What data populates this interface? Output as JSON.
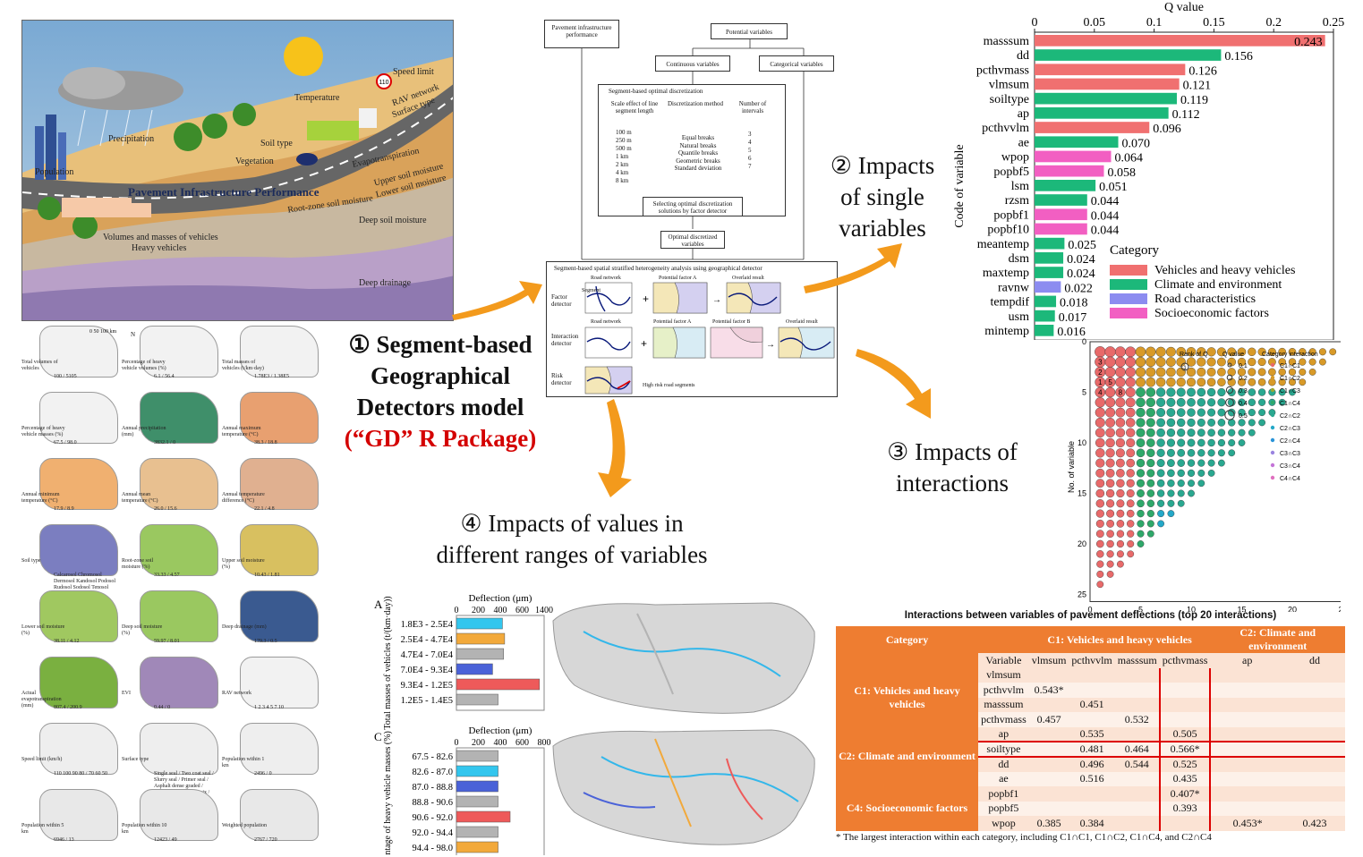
{
  "illustration": {
    "title": "Pavement Infrastructure Performance",
    "labels": [
      "Precipitation",
      "Temperature",
      "Speed limit",
      "RAV network",
      "Surface type",
      "Soil type",
      "Vegetation",
      "Population",
      "Evapotranspiration",
      "Upper soil moisture",
      "Lower soil moisture",
      "Root-zone soil moisture",
      "Deep soil moisture",
      "Deep drainage",
      "Volumes and masses of vehicles",
      "Heavy vehicles"
    ],
    "speed_sign": "110"
  },
  "maps": [
    {
      "caption": "Total volumes of vehicles",
      "legend": "100 / 5105",
      "scale": "0 50 100 km",
      "north": "N"
    },
    {
      "caption": "Percentage of heavy vehicle volumes (%)",
      "legend": "6.1 / 56.4"
    },
    {
      "caption": "Total masses of vehicles (t/km·day)",
      "legend": "1.78E3 / 1.38E5"
    },
    {
      "caption": "Percentage of heavy vehicle masses (%)",
      "legend": "67.5 / 98.0"
    },
    {
      "caption": "Annual precipitation (mm)",
      "legend": "3832.1 / 0"
    },
    {
      "caption": "Annual maximum temperature (°C)",
      "legend": "38.3 / 18.8"
    },
    {
      "caption": "Annual minimum temperature (°C)",
      "legend": "17.9 / 8.9"
    },
    {
      "caption": "Annual mean temperature (°C)",
      "legend": "26.0 / 15.6"
    },
    {
      "caption": "Annual temperature difference (°C)",
      "legend": "22.1 / 4.8"
    },
    {
      "caption": "Soil type",
      "legend": "Calcarosol Chromosol Dermosol Kandosol Podosol Rudosol Sodosol Tenosol"
    },
    {
      "caption": "Root-zone soil moisture (%)",
      "legend": "33.33 / 4.57"
    },
    {
      "caption": "Upper soil moisture (%)",
      "legend": "10.43 / 1.81"
    },
    {
      "caption": "Lower soil moisture (%)",
      "legend": "38.11 / 4.12"
    },
    {
      "caption": "Deep soil moisture (%)",
      "legend": "59.97 / 8.01"
    },
    {
      "caption": "Deep drainage (mm)",
      "legend": "179.3 / 0.5"
    },
    {
      "caption": "Actual evapotranspiration (mm)",
      "legend": "807.4 / 200.9"
    },
    {
      "caption": "EVI",
      "legend": "0.44 / 0"
    },
    {
      "caption": "RAV network",
      "legend": "1 2 3 4 5 7 10"
    },
    {
      "caption": "Speed limit (km/h)",
      "legend": "110 100 90 80 / 70 60 50"
    },
    {
      "caption": "Surface type",
      "legend": "Single seal / Two coat seal / Slurry seal / Primer seal / Asphalt dense graded / Asphalt intersection mix / Rubberised seal / Asphalt open graded"
    },
    {
      "caption": "Population within 1 km",
      "legend": "2496 / 0"
    },
    {
      "caption": "Population within 5 km",
      "legend": "6946 / 13"
    },
    {
      "caption": "Population within 10 km",
      "legend": "12423 / 49"
    },
    {
      "caption": "Weighted population",
      "legend": "2767 / 720"
    }
  ],
  "flow": {
    "pavement_box": "Pavement infrastructure performance",
    "potential_box": "Potential variables",
    "continuous_box": "Continuous variables",
    "categorical_box": "Categorical variables",
    "discretization_title": "Segment-based optimal discretization",
    "col1_title": "Scale effect of line segment length",
    "col2_title": "Discretization method",
    "col3_title": "Number of intervals",
    "lengths": [
      "100 m",
      "250 m",
      "500 m",
      "1 km",
      "2 km",
      "4 km",
      "8 km"
    ],
    "methods": [
      "Equal breaks",
      "Natural breaks",
      "Quantile breaks",
      "Geometric breaks",
      "Standard deviation"
    ],
    "intervals": [
      "3",
      "4",
      "5",
      "6",
      "7"
    ],
    "select_box": "Selecting optimal discretization solutions by factor detector",
    "optimal_box": "Optimal discretized variables",
    "gd_title": "Segment-based spatial stratified heterogeneity analysis using geographical detector",
    "rows": [
      {
        "detector": "Factor detector",
        "a": "Road network",
        "b": "Potential factor A",
        "c": "Overlaid result"
      },
      {
        "detector": "Interaction detector",
        "a": "Road network",
        "b": "Potential factor A",
        "c": "Potential factor B",
        "d": "Overlaid result"
      },
      {
        "detector": "Risk detector",
        "a": "High risk road segments"
      }
    ],
    "segment_label": "Segment"
  },
  "steps": {
    "s1_num": "①",
    "s1_a": "Segment-based",
    "s1_b": "Geographical",
    "s1_c": "Detectors model",
    "s1_pkg": "(“GD” R Package)",
    "s2_num": "②",
    "s2_a": "Impacts",
    "s2_b": "of single",
    "s2_c": "variables",
    "s3_num": "③",
    "s3_a": "Impacts of",
    "s3_b": "interactions",
    "s4_num": "④",
    "s4_a": "Impacts of values in",
    "s4_b": "different ranges of variables"
  },
  "chart_data": [
    {
      "type": "bar",
      "orientation": "horizontal",
      "title": "Q value",
      "ylabel": "Code of variable",
      "xlim": [
        0,
        0.25
      ],
      "xticks": [
        0,
        0.05,
        0.1,
        0.15,
        0.2,
        0.25
      ],
      "xtick_labels": [
        "0",
        "0.05",
        "0.1",
        "0.15",
        "0.2",
        "0.25"
      ],
      "categories": [
        "masssum",
        "dd",
        "pcthvmass",
        "vlmsum",
        "soiltype",
        "ap",
        "pcthvvlm",
        "ae",
        "wpop",
        "popbf5",
        "lsm",
        "rzsm",
        "popbf1",
        "popbf10",
        "meantemp",
        "dsm",
        "maxtemp",
        "ravnw",
        "tempdif",
        "usm",
        "mintemp"
      ],
      "values": [
        0.243,
        0.156,
        0.126,
        0.121,
        0.119,
        0.112,
        0.096,
        0.07,
        0.064,
        0.058,
        0.051,
        0.044,
        0.044,
        0.044,
        0.025,
        0.024,
        0.024,
        0.022,
        0.018,
        0.017,
        0.016
      ],
      "value_labels": [
        "0.243",
        "0.156",
        "0.126",
        "0.121",
        "0.119",
        "0.112",
        "0.096",
        "0.070",
        "0.064",
        "0.058",
        "0.051",
        "0.044",
        "0.044",
        "0.044",
        "0.025",
        "0.024",
        "0.024",
        "0.022",
        "0.018",
        "0.017",
        "0.016"
      ],
      "category_of": [
        0,
        1,
        0,
        0,
        1,
        1,
        0,
        1,
        3,
        3,
        1,
        1,
        3,
        3,
        1,
        1,
        1,
        2,
        1,
        1,
        1
      ],
      "legend_title": "Category",
      "legend": [
        "Vehicles and heavy vehicles",
        "Climate and environment",
        "Road characteristics",
        "Socioeconomic factors"
      ],
      "colors": [
        "#f07070",
        "#1cb87a",
        "#8c8cf0",
        "#f25fc2"
      ]
    },
    {
      "type": "scatter",
      "xlabel": "No. of variable",
      "ylabel": "No. of variable",
      "xticks": [
        0,
        5,
        10,
        15,
        20,
        25
      ],
      "yticks": [
        0,
        5,
        10,
        15,
        20,
        25
      ],
      "legend_rank_title": "Rank of Q",
      "legend_rank_symbol": "1",
      "legend_q_title": "Q value",
      "legend_q": [
        "0.1",
        "0.2",
        "0.3",
        "0.4",
        "0.5"
      ],
      "legend_cat_title": "Category interaction",
      "legend_cat": [
        "C1∩C1",
        "C1∩C2",
        "C1∩C3",
        "C1∩C4",
        "C2∩C2",
        "C2∩C3",
        "C2∩C4",
        "C3∩C3",
        "C3∩C4",
        "C4∩C4"
      ],
      "cat_colors": [
        "#e86a6a",
        "#d89a28",
        "#9aa830",
        "#2fa86a",
        "#2aa890",
        "#24a8c8",
        "#2a94d8",
        "#9a84e0",
        "#c474d8",
        "#e070c0"
      ],
      "rank_labels": [
        "3",
        "2",
        "1",
        "5",
        "4",
        "8"
      ]
    },
    {
      "type": "bar",
      "orientation": "horizontal",
      "panel": "A",
      "title": "Deflection (μm)",
      "ylabel": "Total masses of vehicles (t/(km·day))",
      "xlim": [
        0,
        1400
      ],
      "xticks": [
        0,
        200,
        400,
        600,
        1400
      ],
      "xtick_labels": [
        "0",
        "200",
        "400",
        "600",
        "1400"
      ],
      "categories": [
        "1.8E3 - 2.5E4",
        "2.5E4 - 4.7E4",
        "4.7E4 - 7.0E4",
        "7.0E4 - 9.3E4",
        "9.3E4 - 1.2E5",
        "1.2E5 - 1.4E5"
      ],
      "values": [
        420,
        440,
        430,
        330,
        1230,
        380
      ],
      "colors": [
        "#33c6ee",
        "#f2a93b",
        "#b3b3b3",
        "#4a62d8",
        "#ee5a5a",
        "#b3b3b3"
      ]
    },
    {
      "type": "bar",
      "orientation": "horizontal",
      "panel": "C",
      "title": "Deflection (μm)",
      "ylabel": "Percentage of heavy vehicle masses (%)",
      "xlim": [
        0,
        800
      ],
      "xticks": [
        0,
        200,
        400,
        600,
        800
      ],
      "xtick_labels": [
        "0",
        "200",
        "400",
        "600",
        "800"
      ],
      "categories": [
        "67.5 - 82.6",
        "82.6 - 87.0",
        "87.0 - 88.8",
        "88.8 - 90.6",
        "90.6 - 92.0",
        "92.0 - 94.4",
        "94.4 - 98.0"
      ],
      "values": [
        380,
        380,
        380,
        380,
        490,
        380,
        380
      ],
      "colors": [
        "#b3b3b3",
        "#33c6ee",
        "#4a62d8",
        "#b3b3b3",
        "#ee5a5a",
        "#b3b3b3",
        "#f2a93b"
      ]
    }
  ],
  "table": {
    "title": "Interactions between variables of pavement deflections (top 20 interactions)",
    "head_category": "Category",
    "head_c1": "C1: Vehicles and heavy vehicles",
    "head_c2": "C2: Climate and environment",
    "cols": [
      "Variable",
      "vlmsum",
      "pcthvvlm",
      "masssum",
      "pcthvmass",
      "ap",
      "dd"
    ],
    "groups": [
      {
        "name": "C1: Vehicles and heavy vehicles",
        "rows": [
          [
            "vlmsum",
            "",
            "",
            "",
            "",
            "",
            ""
          ],
          [
            "pcthvvlm",
            "0.543*",
            "",
            "",
            "",
            "",
            ""
          ],
          [
            "masssum",
            "",
            "0.451",
            "",
            "",
            "",
            ""
          ],
          [
            "pcthvmass",
            "0.457",
            "",
            "0.532",
            "",
            "",
            ""
          ]
        ]
      },
      {
        "name": "C2: Climate and environment",
        "rows": [
          [
            "ap",
            "",
            "0.535",
            "",
            "0.505",
            "",
            ""
          ],
          [
            "soiltype",
            "",
            "0.481",
            "0.464",
            "0.566*",
            "",
            ""
          ],
          [
            "dd",
            "",
            "0.496",
            "0.544",
            "0.525",
            "",
            ""
          ],
          [
            "ae",
            "",
            "0.516",
            "",
            "0.435",
            "",
            ""
          ]
        ]
      },
      {
        "name": "C4: Socioeconomic factors",
        "rows": [
          [
            "popbf1",
            "",
            "",
            "",
            "0.407*",
            "",
            ""
          ],
          [
            "popbf5",
            "",
            "",
            "",
            "0.393",
            "",
            ""
          ],
          [
            "wpop",
            "0.385",
            "0.384",
            "",
            "",
            "0.453*",
            "0.423"
          ]
        ]
      }
    ],
    "footnote": "* The largest interaction within each category, including C1∩C1, C1∩C2, C1∩C4, and C2∩C4"
  }
}
